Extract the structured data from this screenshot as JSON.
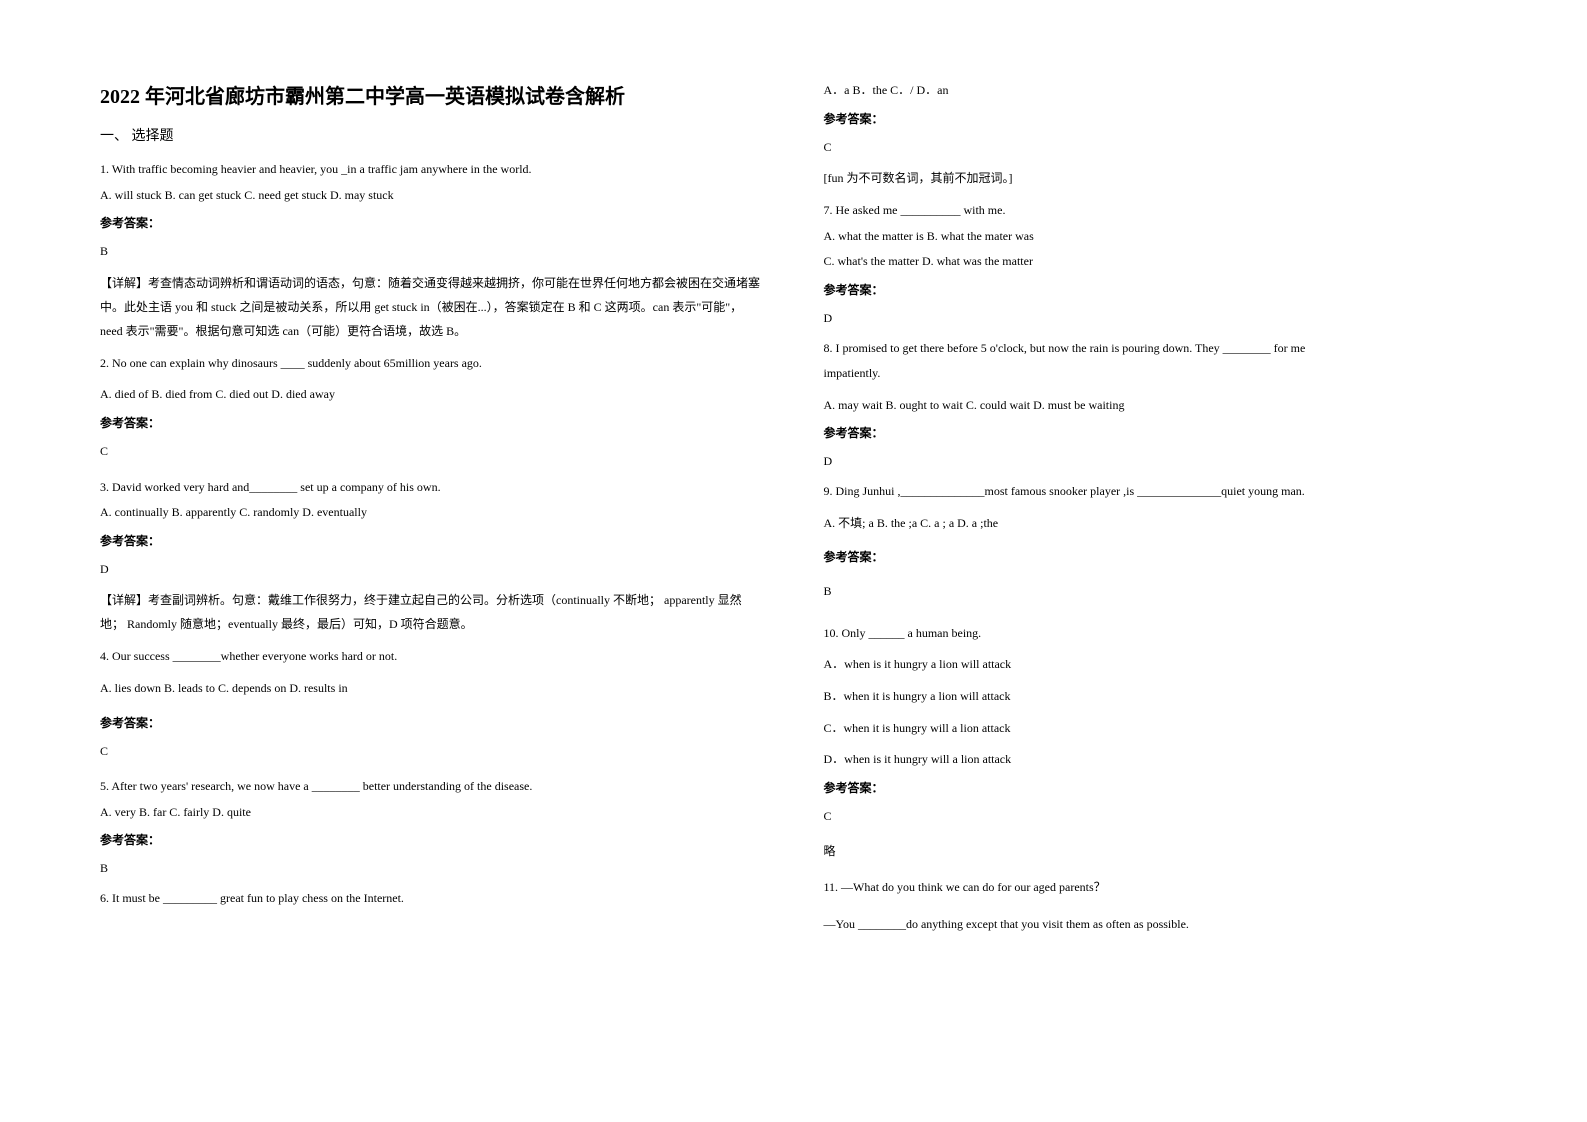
{
  "title": "2022 年河北省廊坊市霸州第二中学高一英语模拟试卷含解析",
  "section1": "一、 选择题",
  "q1": {
    "text": "1. With traffic becoming heavier and heavier, you _in a traffic jam anywhere in the world.",
    "options": "A. will stuck    B. can get stuck    C. need get stuck    D. may stuck",
    "answerLabel": "参考答案：",
    "answer": "B",
    "explanation": "【详解】考查情态动词辨析和谓语动词的语态，句意：随着交通变得越来越拥挤，你可能在世界任何地方都会被困在交通堵塞中。此处主语 you 和 stuck 之间是被动关系，所以用 get stuck in（被困在...），答案锁定在 B 和 C 这两项。can 表示\"可能\"，need 表示\"需要\"。根据句意可知选 can（可能）更符合语境，故选 B。"
  },
  "q2": {
    "text": "2. No one can explain why dinosaurs ____ suddenly about 65million years ago.",
    "options": "A.  died of       B.  died from       C.  died out      D.  died away",
    "answerLabel": "参考答案：",
    "answer": "C"
  },
  "q3": {
    "text": "3. David worked very hard and________ set up a company of his own.",
    "options": "A. continually    B. apparently    C. randomly    D. eventually",
    "answerLabel": "参考答案：",
    "answer": "D",
    "explanation": "【详解】考查副词辨析。句意：戴维工作很努力，终于建立起自己的公司。分析选项（continually 不断地；  apparently 显然地；  Randomly 随意地；eventually 最终，最后）可知，D 项符合题意。"
  },
  "q4": {
    "text": "4. Our success ________whether everyone works hard or not.",
    "options": "  A. lies down     B. leads to    C. depends on      D. results in",
    "answerLabel": "参考答案：",
    "answer": "C"
  },
  "q5": {
    "text": "5. After two years' research, we now have a ________ better understanding of the disease.",
    "options": "A. very       B. far        C. fairly        D. quite",
    "answerLabel": "参考答案：",
    "answer": "B"
  },
  "q6": {
    "text": "6. It must be _________ great fun to play chess on the Internet.",
    "options": "A．a    B．the             C．/    D．an",
    "answerLabel": "参考答案：",
    "answer": "C",
    "explanation": "[fun 为不可数名词，其前不加冠词。]"
  },
  "q7": {
    "text": "7. He asked me __________ with me.",
    "optionsA": "  A. what the matter is         B. what the mater was",
    "optionsB": "  C. what's the matter           D. what was the matter",
    "answerLabel": "参考答案：",
    "answer": "D"
  },
  "q8": {
    "text1": "8. I promised to get there before 5 o'clock, but now the rain is pouring down. They ________ for me",
    "text2": "impatiently.",
    "options": "A. may wait    B. ought to wait     C. could wait    D. must be waiting",
    "answerLabel": "参考答案：",
    "answer": "D"
  },
  "q9": {
    "text": "9. Ding Junhui  ,______________most famous snooker player ,is ______________quiet young man.",
    "options": "A. 不填;  a  B. the ;a  C. a ; a   D. a  ;the",
    "answerLabel": "参考答案：",
    "answer": "B"
  },
  "q10": {
    "text": "10. Only ______ a human being.",
    "optA": "A．when is it hungry a lion will attack",
    "optB": "B．when it is hungry a lion will attack",
    "optC": "C．when it is hungry will a lion attack",
    "optD": "D．when is it hungry will a lion attack",
    "answerLabel": "参考答案：",
    "answer": "C",
    "note": "略"
  },
  "q11": {
    "text1": "11. —What do you think we can do for our aged parents？",
    "text2": "—You ________do anything except that you visit them as often as possible."
  }
}
